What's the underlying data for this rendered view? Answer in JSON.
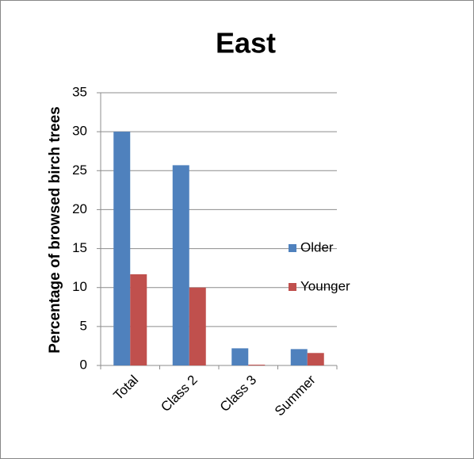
{
  "chart_data": {
    "type": "bar",
    "title": "East",
    "y_label": "Percentage of browsed birch trees",
    "categories": [
      "Total",
      "Class 2",
      "Class 3",
      "Summer"
    ],
    "series": [
      {
        "name": "Older",
        "color": "#4f81bd",
        "values": [
          30,
          25.7,
          2.2,
          2.1
        ]
      },
      {
        "name": "Younger",
        "color": "#c0504d",
        "values": [
          11.7,
          10,
          0.1,
          1.6
        ]
      }
    ],
    "ylim": [
      0,
      35
    ],
    "yticks": [
      0,
      5,
      10,
      15,
      20,
      25,
      30,
      35
    ],
    "grid": true,
    "legend": "right"
  }
}
